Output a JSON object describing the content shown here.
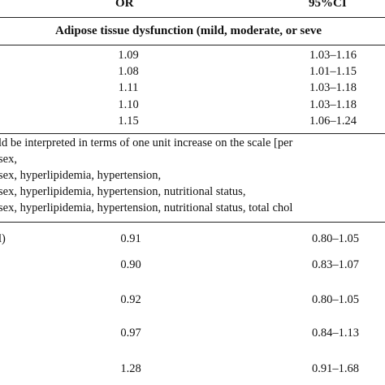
{
  "header": {
    "or_label": "OR",
    "ci_label": "95%CI",
    "subheader": "Adipose tissue dysfunction (mild, moderate, or seve"
  },
  "table_top": {
    "rows": [
      {
        "or": "1.09",
        "ci": "1.03–1.16"
      },
      {
        "or": "1.08",
        "ci": "1.01–1.15"
      },
      {
        "or": "1.11",
        "ci": "1.03–1.18"
      },
      {
        "or": "1.10",
        "ci": "1.03–1.18"
      },
      {
        "or": "1.15",
        "ci": "1.06–1.24"
      }
    ]
  },
  "footnotes": [
    "ld be interpreted in terms of one unit increase on the scale [per",
    "sex,",
    "sex, hyperlipidemia, hypertension,",
    "sex, hyperlipidemia, hypertension, nutritional status,",
    "sex, hyperlipidemia, hypertension, nutritional status, total chol"
  ],
  "table_bottom": {
    "first_row_stub": "l)",
    "rows": [
      {
        "or": "0.91",
        "ci": "0.80–1.05"
      },
      {
        "or": "0.90",
        "ci": "0.83–1.07"
      },
      {
        "or": "0.92",
        "ci": "0.80–1.05"
      },
      {
        "or": "0.97",
        "ci": "0.84–1.13"
      },
      {
        "or": "1.28",
        "ci": "0.91–1.68"
      }
    ]
  }
}
